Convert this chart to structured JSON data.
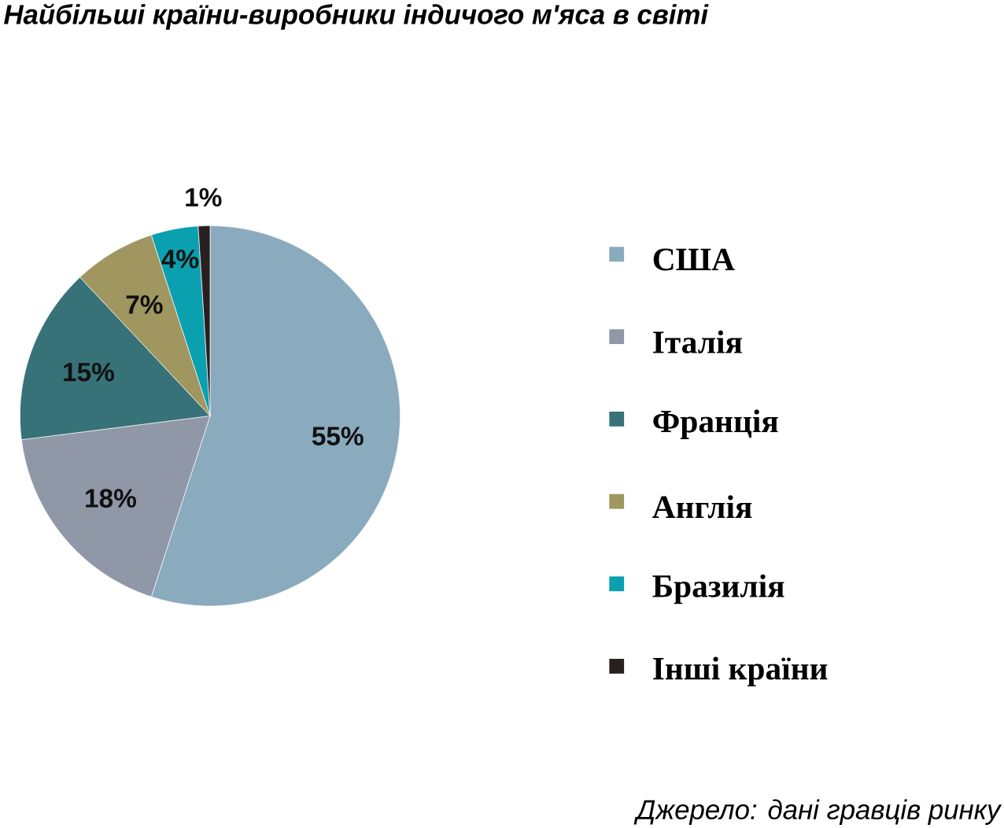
{
  "chart_data": {
    "type": "pie",
    "title": "Найбільші країни-виробники індичого м'яса в світі",
    "categories": [
      "США",
      "Італія",
      "Франція",
      "Англія",
      "Бразилія",
      "Інші країни"
    ],
    "values": [
      55,
      18,
      15,
      7,
      4,
      1
    ],
    "colors": [
      "#8aaabe",
      "#9097a7",
      "#377278",
      "#a09660",
      "#0aa0b0",
      "#2a1f20"
    ],
    "value_labels": [
      "55%",
      "18%",
      "15%",
      "7%",
      "4%",
      "1%"
    ],
    "legend": "right",
    "annotations": [
      "Джерело: дані гравців ринку"
    ]
  }
}
